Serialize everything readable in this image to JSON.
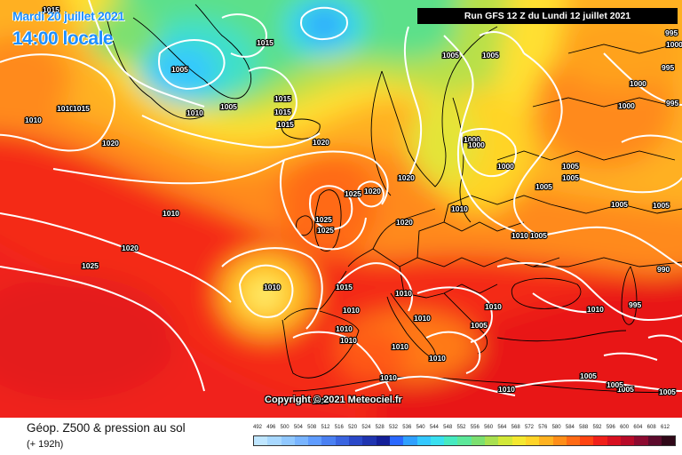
{
  "header": {
    "valid_date": "Mardi 20 juillet 2021",
    "valid_time": "14:00 locale",
    "run_info": "Run GFS 12 Z du Lundi 12 juillet 2021"
  },
  "map": {
    "copyright": "Copyright © 2021 Meteociel.fr",
    "pressure_labels": [
      "1015",
      "1010",
      "1010",
      "1015",
      "1005",
      "1015",
      "1005",
      "1010",
      "1005",
      "1020",
      "1005",
      "1015",
      "1015",
      "1015",
      "1020",
      "1020",
      "1025",
      "1020",
      "1000",
      "1000",
      "1000",
      "1005",
      "1005",
      "1005",
      "1010",
      "1010",
      "1020",
      "1025",
      "1025",
      "1020",
      "1010",
      "1005",
      "1025",
      "1010",
      "1015",
      "1010",
      "1010",
      "1010",
      "1010",
      "1010",
      "1005",
      "1010",
      "1010",
      "1010",
      "1010",
      "1010",
      "1010",
      "995",
      "995",
      "995",
      "1000",
      "1000",
      "1005",
      "1005",
      "1005",
      "1000",
      "995",
      "990",
      "1005",
      "1005",
      "1005",
      "1010"
    ],
    "high_pressure_labels": [
      "1025",
      "1020"
    ],
    "low_pressure_labels": [
      "1005",
      "1010",
      "1000"
    ]
  },
  "footer": {
    "title": "Géop. Z500 & pression au sol",
    "lead_time": "(+ 192h)"
  },
  "legend": {
    "values": [
      "492",
      "496",
      "500",
      "504",
      "508",
      "512",
      "516",
      "520",
      "524",
      "528",
      "532",
      "536",
      "540",
      "544",
      "548",
      "552",
      "556",
      "560",
      "564",
      "568",
      "572",
      "576",
      "580",
      "584",
      "588",
      "592",
      "596",
      "600",
      "604",
      "608",
      "612"
    ],
    "colors": [
      "#bfe6ff",
      "#a8d8ff",
      "#90c8ff",
      "#78b4ff",
      "#5f9cff",
      "#4a80f2",
      "#3a64e0",
      "#2a48c8",
      "#1f34b0",
      "#141f98",
      "#2a68ff",
      "#2fa0ff",
      "#34c8ff",
      "#39e0f0",
      "#46eac0",
      "#5ce89a",
      "#7ce070",
      "#a8e050",
      "#d2e838",
      "#f4e830",
      "#ffd428",
      "#ffb220",
      "#ff8e18",
      "#ff6a14",
      "#ff4412",
      "#f0201a",
      "#d81020",
      "#b80a28",
      "#8c0a30",
      "#5c0a2c",
      "#300818"
    ]
  }
}
